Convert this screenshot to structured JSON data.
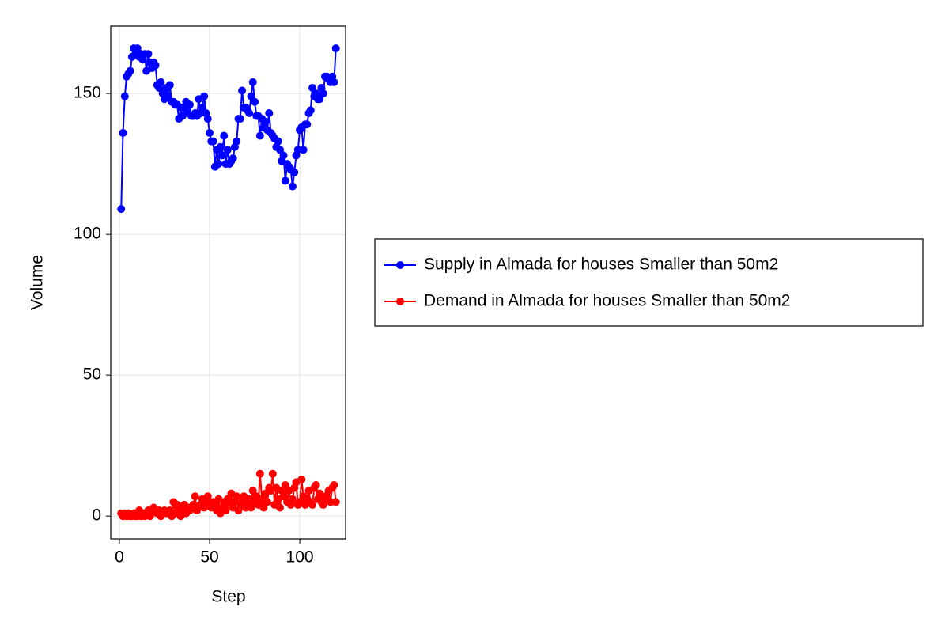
{
  "chart_data": {
    "type": "line",
    "x_label": "Step",
    "y_label": "Volume",
    "x": [
      1,
      2,
      3,
      4,
      5,
      6,
      7,
      8,
      9,
      10,
      11,
      12,
      13,
      14,
      15,
      16,
      17,
      18,
      19,
      20,
      21,
      22,
      23,
      24,
      25,
      26,
      27,
      28,
      29,
      30,
      31,
      32,
      33,
      34,
      35,
      36,
      37,
      38,
      39,
      40,
      41,
      42,
      43,
      44,
      45,
      46,
      47,
      48,
      49,
      50,
      51,
      52,
      53,
      54,
      55,
      56,
      57,
      58,
      59,
      60,
      61,
      62,
      63,
      64,
      65,
      66,
      67,
      68,
      69,
      70,
      71,
      72,
      73,
      74,
      75,
      76,
      77,
      78,
      79,
      80,
      81,
      82,
      83,
      84,
      85,
      86,
      87,
      88,
      89,
      90,
      91,
      92,
      93,
      94,
      95,
      96,
      97,
      98,
      99,
      100,
      101,
      102,
      103,
      104,
      105,
      106,
      107,
      108,
      109,
      110,
      111,
      112,
      113,
      114,
      115,
      116,
      117,
      118,
      119,
      120
    ],
    "series": [
      {
        "name": "Supply in Almada for houses Smaller than 50m2",
        "color": "#0000ff",
        "values": [
          109,
          136,
          149,
          156,
          157,
          158,
          163,
          166,
          165,
          166,
          163,
          164,
          162,
          164,
          158,
          164,
          161,
          159,
          161,
          160,
          153,
          152,
          154,
          150,
          148,
          152,
          149,
          153,
          147,
          147,
          146,
          146,
          141,
          145,
          142,
          145,
          147,
          143,
          146,
          142,
          142,
          143,
          142,
          148,
          143,
          145,
          149,
          143,
          141,
          136,
          133,
          133,
          124,
          130,
          125,
          131,
          128,
          135,
          125,
          130,
          125,
          126,
          127,
          131,
          133,
          141,
          141,
          151,
          145,
          145,
          144,
          143,
          149,
          154,
          147,
          142,
          142,
          135,
          141,
          138,
          140,
          137,
          143,
          136,
          135,
          134,
          131,
          133,
          130,
          126,
          128,
          119,
          125,
          124,
          123,
          117,
          122,
          128,
          130,
          137,
          138,
          130,
          139,
          139,
          143,
          144,
          152,
          149,
          150,
          148,
          148,
          152,
          150,
          156,
          156,
          155,
          154,
          156,
          154,
          166
        ]
      },
      {
        "name": "Demand in Almada for houses Smaller than 50m2",
        "color": "#ff0000",
        "values": [
          1,
          0,
          1,
          0,
          1,
          0,
          0,
          1,
          0,
          0,
          2,
          0,
          1,
          0,
          1,
          2,
          0,
          1,
          3,
          2,
          1,
          2,
          0,
          1,
          2,
          1,
          1,
          2,
          0,
          5,
          1,
          4,
          3,
          0,
          2,
          4,
          1,
          3,
          2,
          3,
          4,
          7,
          2,
          3,
          4,
          6,
          3,
          5,
          7,
          4,
          3,
          5,
          4,
          2,
          6,
          1,
          3,
          5,
          2,
          6,
          4,
          8,
          3,
          5,
          7,
          2,
          6,
          4,
          7,
          3,
          5,
          6,
          3,
          9,
          5,
          7,
          4,
          15,
          6,
          3,
          8,
          5,
          10,
          9,
          15,
          4,
          10,
          6,
          3,
          9,
          7,
          11,
          5,
          9,
          4,
          6,
          10,
          12,
          4,
          5,
          13,
          7,
          4,
          6,
          9,
          5,
          4,
          10,
          11,
          6,
          8,
          5,
          4,
          7,
          6,
          9,
          5,
          10,
          11,
          5
        ]
      }
    ],
    "xlim": [
      -4.8,
      125.4
    ],
    "ylim": [
      -8.1,
      173.9
    ],
    "xticks": [
      0,
      50,
      100
    ],
    "yticks": [
      0,
      50,
      100,
      150
    ],
    "grid": true,
    "legend": "right"
  }
}
